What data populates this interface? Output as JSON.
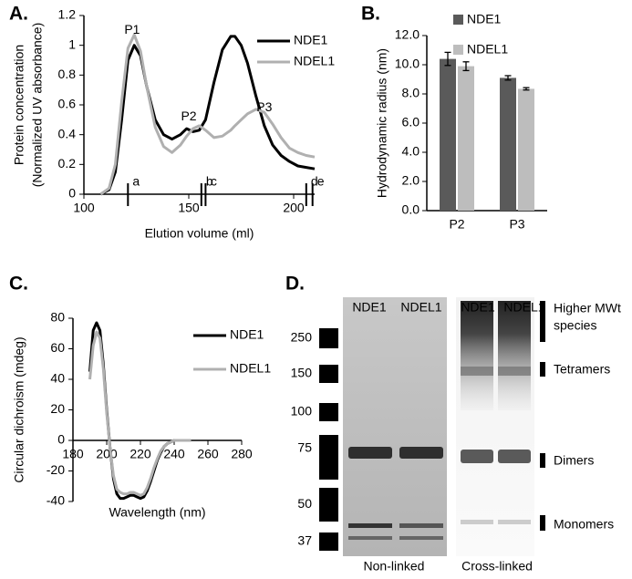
{
  "chart_data": [
    {
      "type": "line",
      "panel_label": "A.",
      "xlabel": "Elution volume (ml)",
      "ylabel": [
        "Protein concentration",
        "(Normalized UV absorbance)"
      ],
      "xlim": [
        100,
        210
      ],
      "xticks": [
        100,
        150,
        200
      ],
      "ylim": [
        0,
        1.2
      ],
      "yticks": [
        0,
        0.2,
        0.4,
        0.6,
        0.8,
        1,
        1.2
      ],
      "grid": false,
      "legend": "upper right",
      "x": [
        108,
        112,
        115,
        118,
        121,
        124,
        127,
        130,
        134,
        138,
        142,
        146,
        149,
        152,
        155,
        158,
        162,
        166,
        170,
        172,
        175,
        178,
        182,
        186,
        190,
        194,
        198,
        202,
        206,
        210
      ],
      "series": [
        {
          "name": "NDE1",
          "color": "#000000",
          "values": [
            0,
            0.03,
            0.15,
            0.5,
            0.9,
            1.0,
            0.93,
            0.72,
            0.5,
            0.4,
            0.37,
            0.4,
            0.44,
            0.42,
            0.43,
            0.5,
            0.75,
            0.97,
            1.06,
            1.06,
            1.0,
            0.88,
            0.66,
            0.46,
            0.33,
            0.26,
            0.22,
            0.19,
            0.18,
            0.17
          ]
        },
        {
          "name": "NDEL1",
          "color": "#b0b0b0",
          "values": [
            0,
            0.04,
            0.2,
            0.62,
            0.98,
            1.07,
            0.96,
            0.72,
            0.45,
            0.32,
            0.28,
            0.33,
            0.39,
            0.44,
            0.46,
            0.43,
            0.38,
            0.39,
            0.43,
            0.46,
            0.5,
            0.54,
            0.57,
            0.55,
            0.47,
            0.38,
            0.31,
            0.28,
            0.26,
            0.25
          ]
        }
      ],
      "annotations": [
        {
          "text": "P1",
          "x": 123,
          "y": 1.1
        },
        {
          "text": "P2",
          "x": 150,
          "y": 0.52
        },
        {
          "text": "P3",
          "x": 186,
          "y": 0.58
        }
      ],
      "fractions": [
        {
          "label": "a",
          "x": 121
        },
        {
          "label": "b",
          "x": 156
        },
        {
          "label": "c",
          "x": 158
        },
        {
          "label": "d",
          "x": 206
        },
        {
          "label": "e",
          "x": 209
        }
      ]
    },
    {
      "type": "bar",
      "panel_label": "B.",
      "ylabel": "Hydrodynamic radius (nm)",
      "categories": [
        "P2",
        "P3"
      ],
      "ylim": [
        0,
        12
      ],
      "yticks": [
        {
          "value": 0,
          "label": "0.0"
        },
        {
          "value": 2,
          "label": "2.0"
        },
        {
          "value": 4,
          "label": "4.0"
        },
        {
          "value": 6,
          "label": "6.0"
        },
        {
          "value": 8,
          "label": "8.0"
        },
        {
          "value": 10,
          "label": "10.0"
        },
        {
          "value": 12,
          "label": "12.0"
        }
      ],
      "grid": false,
      "legend": "upper left",
      "series": [
        {
          "name": "NDE1",
          "color": "#5a5a5a",
          "values": [
            10.4,
            9.1
          ],
          "errors": [
            0.45,
            0.15
          ]
        },
        {
          "name": "NDEL1",
          "color": "#bdbdbd",
          "values": [
            9.9,
            8.35
          ],
          "errors": [
            0.3,
            0.08
          ]
        }
      ]
    },
    {
      "type": "line",
      "panel_label": "C.",
      "xlabel": "Wavelength (nm)",
      "ylabel": [
        "Circular dichroism (mdeg)"
      ],
      "xlim": [
        180,
        280
      ],
      "xticks": [
        180,
        200,
        220,
        240,
        260,
        280
      ],
      "ylim": [
        -40,
        80
      ],
      "yticks": [
        -40,
        -20,
        0,
        20,
        40,
        60,
        80
      ],
      "grid": false,
      "legend": "right",
      "x": [
        190,
        192,
        194,
        196,
        198,
        200,
        202,
        204,
        206,
        208,
        210,
        212,
        214,
        216,
        218,
        220,
        222,
        224,
        226,
        228,
        230,
        232,
        234,
        236,
        238,
        240,
        245,
        250
      ],
      "series": [
        {
          "name": "NDE1",
          "color": "#000000",
          "values": [
            45,
            72,
            77,
            72,
            50,
            20,
            -5,
            -25,
            -35,
            -38,
            -38,
            -37,
            -36,
            -36,
            -37,
            -38,
            -37,
            -33,
            -27,
            -20,
            -13,
            -8,
            -4,
            -2,
            -1,
            0,
            0,
            0
          ]
        },
        {
          "name": "NDEL1",
          "color": "#b0b0b0",
          "values": [
            40,
            62,
            71,
            67,
            47,
            18,
            -5,
            -23,
            -32,
            -34,
            -35,
            -35,
            -34,
            -34,
            -35,
            -36,
            -35,
            -31,
            -25,
            -18,
            -12,
            -7,
            -4,
            -2,
            -1,
            0,
            0,
            0
          ]
        }
      ]
    },
    {
      "type": "gel",
      "panel_label": "D.",
      "lanes": [
        "NDE1",
        "NDEL1",
        "NDE1",
        "NDEL1"
      ],
      "markers": [
        "250",
        "150",
        "100",
        "75",
        "50",
        "37"
      ],
      "bands": [
        [
          "Higher MWt",
          "species"
        ],
        [
          "Tetramers"
        ],
        [
          "Dimers"
        ],
        [
          "Monomers"
        ]
      ],
      "gels": [
        "Non-linked",
        "Cross-linked"
      ]
    }
  ]
}
